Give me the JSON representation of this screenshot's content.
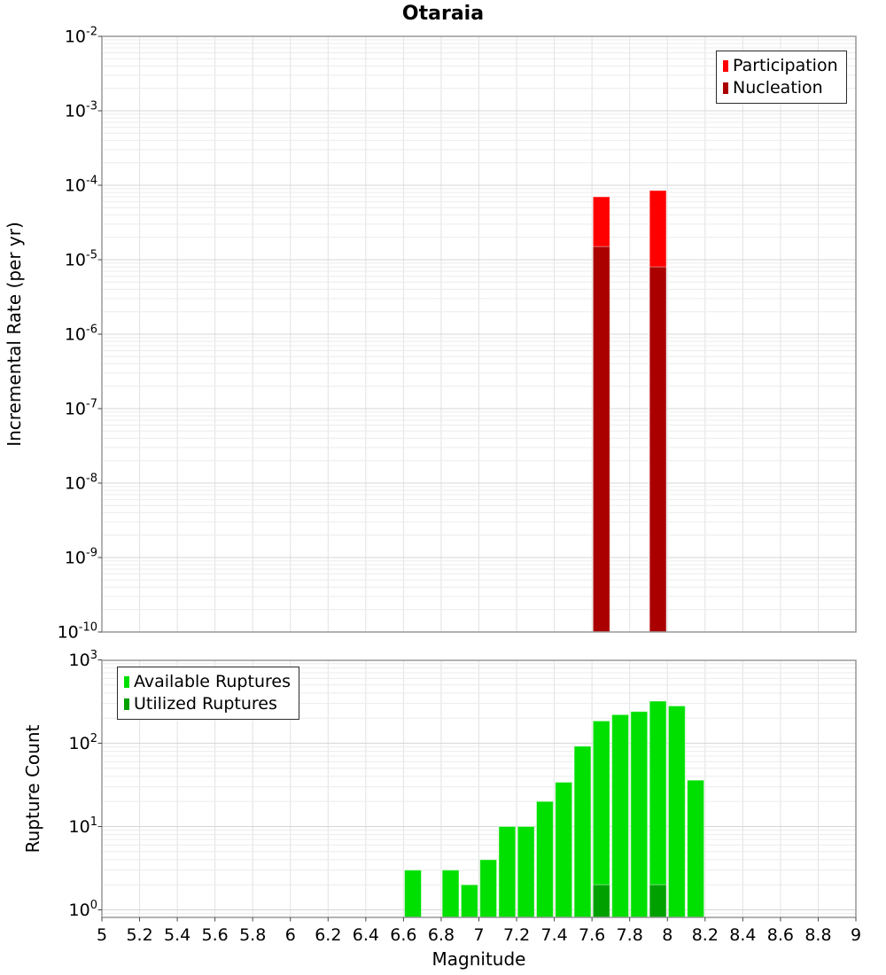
{
  "title": "Otaraia",
  "charts": {
    "rate": {
      "ylabel": "Incremental Rate (per yr)",
      "ytick_exponents": [
        -2,
        -3,
        -4,
        -5,
        -6,
        -7,
        -8,
        -9,
        -10
      ],
      "legend": [
        {
          "label": "Participation",
          "color": "#ff0000"
        },
        {
          "label": "Nucleation",
          "color": "#aa0000"
        }
      ]
    },
    "count": {
      "ylabel": "Rupture Count",
      "xlabel": "Magnitude",
      "ytick_exponents": [
        3,
        2,
        1,
        0
      ],
      "xtick_labels": [
        "5",
        "5.2",
        "5.4",
        "5.6",
        "5.8",
        "6",
        "6.2",
        "6.4",
        "6.6",
        "6.8",
        "7",
        "7.2",
        "7.4",
        "7.6",
        "7.8",
        "8",
        "8.2",
        "8.4",
        "8.6",
        "8.8",
        "9"
      ],
      "legend": [
        {
          "label": "Available Ruptures",
          "color": "#00e000"
        },
        {
          "label": "Utilized Ruptures",
          "color": "#00a000"
        }
      ]
    }
  },
  "chart_data": [
    {
      "type": "bar",
      "title": "Otaraia",
      "ylabel": "Incremental Rate (per yr)",
      "xlabel": "Magnitude",
      "yscale": "log",
      "xlim": [
        5,
        9
      ],
      "ylim": [
        1e-10,
        0.01
      ],
      "bin_width": 0.1,
      "grid": true,
      "legend_position": "top-right",
      "series": [
        {
          "name": "Participation",
          "color": "#ff0000",
          "bars": [
            {
              "bin_start": 7.6,
              "value": 7e-05
            },
            {
              "bin_start": 7.9,
              "value": 8.5e-05
            }
          ]
        },
        {
          "name": "Nucleation",
          "color": "#aa0000",
          "bars": [
            {
              "bin_start": 7.6,
              "value": 1.5e-05
            },
            {
              "bin_start": 7.9,
              "value": 8e-06
            }
          ]
        }
      ]
    },
    {
      "type": "bar",
      "ylabel": "Rupture Count",
      "xlabel": "Magnitude",
      "yscale": "log",
      "xlim": [
        5,
        9
      ],
      "ylim": [
        1,
        1000
      ],
      "bin_width": 0.1,
      "grid": true,
      "legend_position": "top-left",
      "series": [
        {
          "name": "Available Ruptures",
          "color": "#00e000",
          "bars": [
            {
              "bin_start": 6.6,
              "value": 3
            },
            {
              "bin_start": 6.8,
              "value": 3
            },
            {
              "bin_start": 6.9,
              "value": 2
            },
            {
              "bin_start": 7.0,
              "value": 4
            },
            {
              "bin_start": 7.1,
              "value": 10
            },
            {
              "bin_start": 7.2,
              "value": 10
            },
            {
              "bin_start": 7.3,
              "value": 20
            },
            {
              "bin_start": 7.4,
              "value": 34
            },
            {
              "bin_start": 7.5,
              "value": 92
            },
            {
              "bin_start": 7.6,
              "value": 185
            },
            {
              "bin_start": 7.7,
              "value": 220
            },
            {
              "bin_start": 7.8,
              "value": 240
            },
            {
              "bin_start": 7.9,
              "value": 320
            },
            {
              "bin_start": 8.0,
              "value": 280
            },
            {
              "bin_start": 8.1,
              "value": 36
            }
          ]
        },
        {
          "name": "Utilized Ruptures",
          "color": "#00a000",
          "bars": [
            {
              "bin_start": 7.6,
              "value": 2
            },
            {
              "bin_start": 7.9,
              "value": 2
            }
          ]
        }
      ]
    }
  ]
}
